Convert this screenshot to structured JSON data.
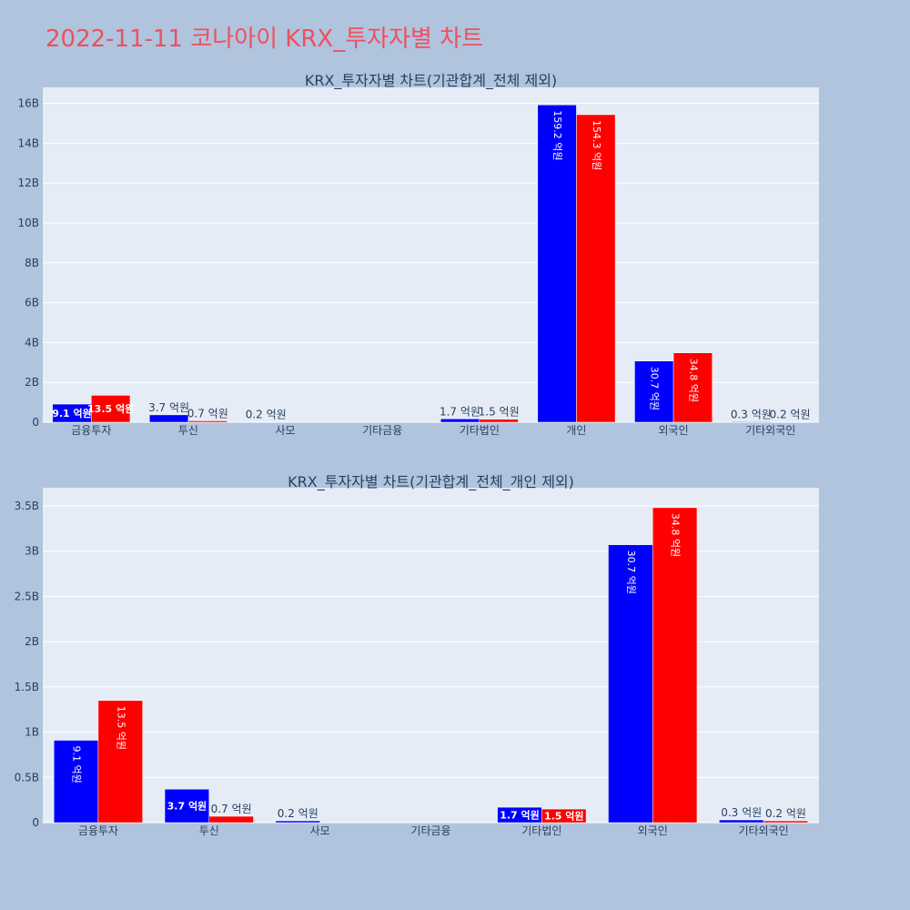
{
  "page": {
    "title": "2022-11-11 코나아이 KRX_투자자별 차트",
    "title_color": "#ef4f5f",
    "background": "#b0c4de",
    "plot_background": "#e5ecf6"
  },
  "chart_data": [
    {
      "type": "bar",
      "title": "KRX_투자자별 차트(기관합계_전체 제외)",
      "categories": [
        "금융투자",
        "투신",
        "사모",
        "기타금융",
        "기타법인",
        "개인",
        "외국인",
        "기타외국인"
      ],
      "ylim": [
        0,
        16.8
      ],
      "yticks": [
        0,
        2,
        4,
        6,
        8,
        10,
        12,
        14,
        16
      ],
      "ytick_labels": [
        "0",
        "2B",
        "4B",
        "6B",
        "8B",
        "10B",
        "12B",
        "14B",
        "16B"
      ],
      "series": [
        {
          "color": "#0000ff",
          "values": [
            0.91,
            0.37,
            0.02,
            0,
            0.17,
            15.92,
            3.07,
            0.03
          ],
          "labels": [
            "9.1 억원",
            "3.7 억원",
            "0.2 억원",
            "",
            "1.7 억원",
            "159.2 억원",
            "30.7 억원",
            "0.3 억원"
          ]
        },
        {
          "color": "#ff0000",
          "values": [
            1.35,
            0.07,
            0,
            0,
            0.15,
            15.43,
            3.48,
            0.02
          ],
          "labels": [
            "13.5 억원",
            "0.7 억원",
            "",
            "",
            "1.5 억원",
            "154.3 억원",
            "34.8 억원",
            "0.2 억원"
          ]
        }
      ],
      "grid": true,
      "legend": "none"
    },
    {
      "type": "bar",
      "title": "KRX_투자자별 차트(기관합계_전체_개인 제외)",
      "categories": [
        "금융투자",
        "투신",
        "사모",
        "기타금융",
        "기타법인",
        "외국인",
        "기타외국인"
      ],
      "ylim": [
        0,
        3.7
      ],
      "yticks": [
        0,
        0.5,
        1,
        1.5,
        2,
        2.5,
        3,
        3.5
      ],
      "ytick_labels": [
        "0",
        "0.5B",
        "1B",
        "1.5B",
        "2B",
        "2.5B",
        "3B",
        "3.5B"
      ],
      "series": [
        {
          "color": "#0000ff",
          "values": [
            0.91,
            0.37,
            0.02,
            0,
            0.17,
            3.07,
            0.03
          ],
          "labels": [
            "9.1 억원",
            "3.7 억원",
            "0.2 억원",
            "",
            "1.7 억원",
            "30.7 억원",
            "0.3 억원"
          ]
        },
        {
          "color": "#ff0000",
          "values": [
            1.35,
            0.07,
            0,
            0,
            0.15,
            3.48,
            0.02
          ],
          "labels": [
            "13.5 억원",
            "0.7 억원",
            "",
            "",
            "1.5 억원",
            "34.8 억원",
            "0.2 억원"
          ]
        }
      ],
      "grid": true,
      "legend": "none"
    }
  ]
}
